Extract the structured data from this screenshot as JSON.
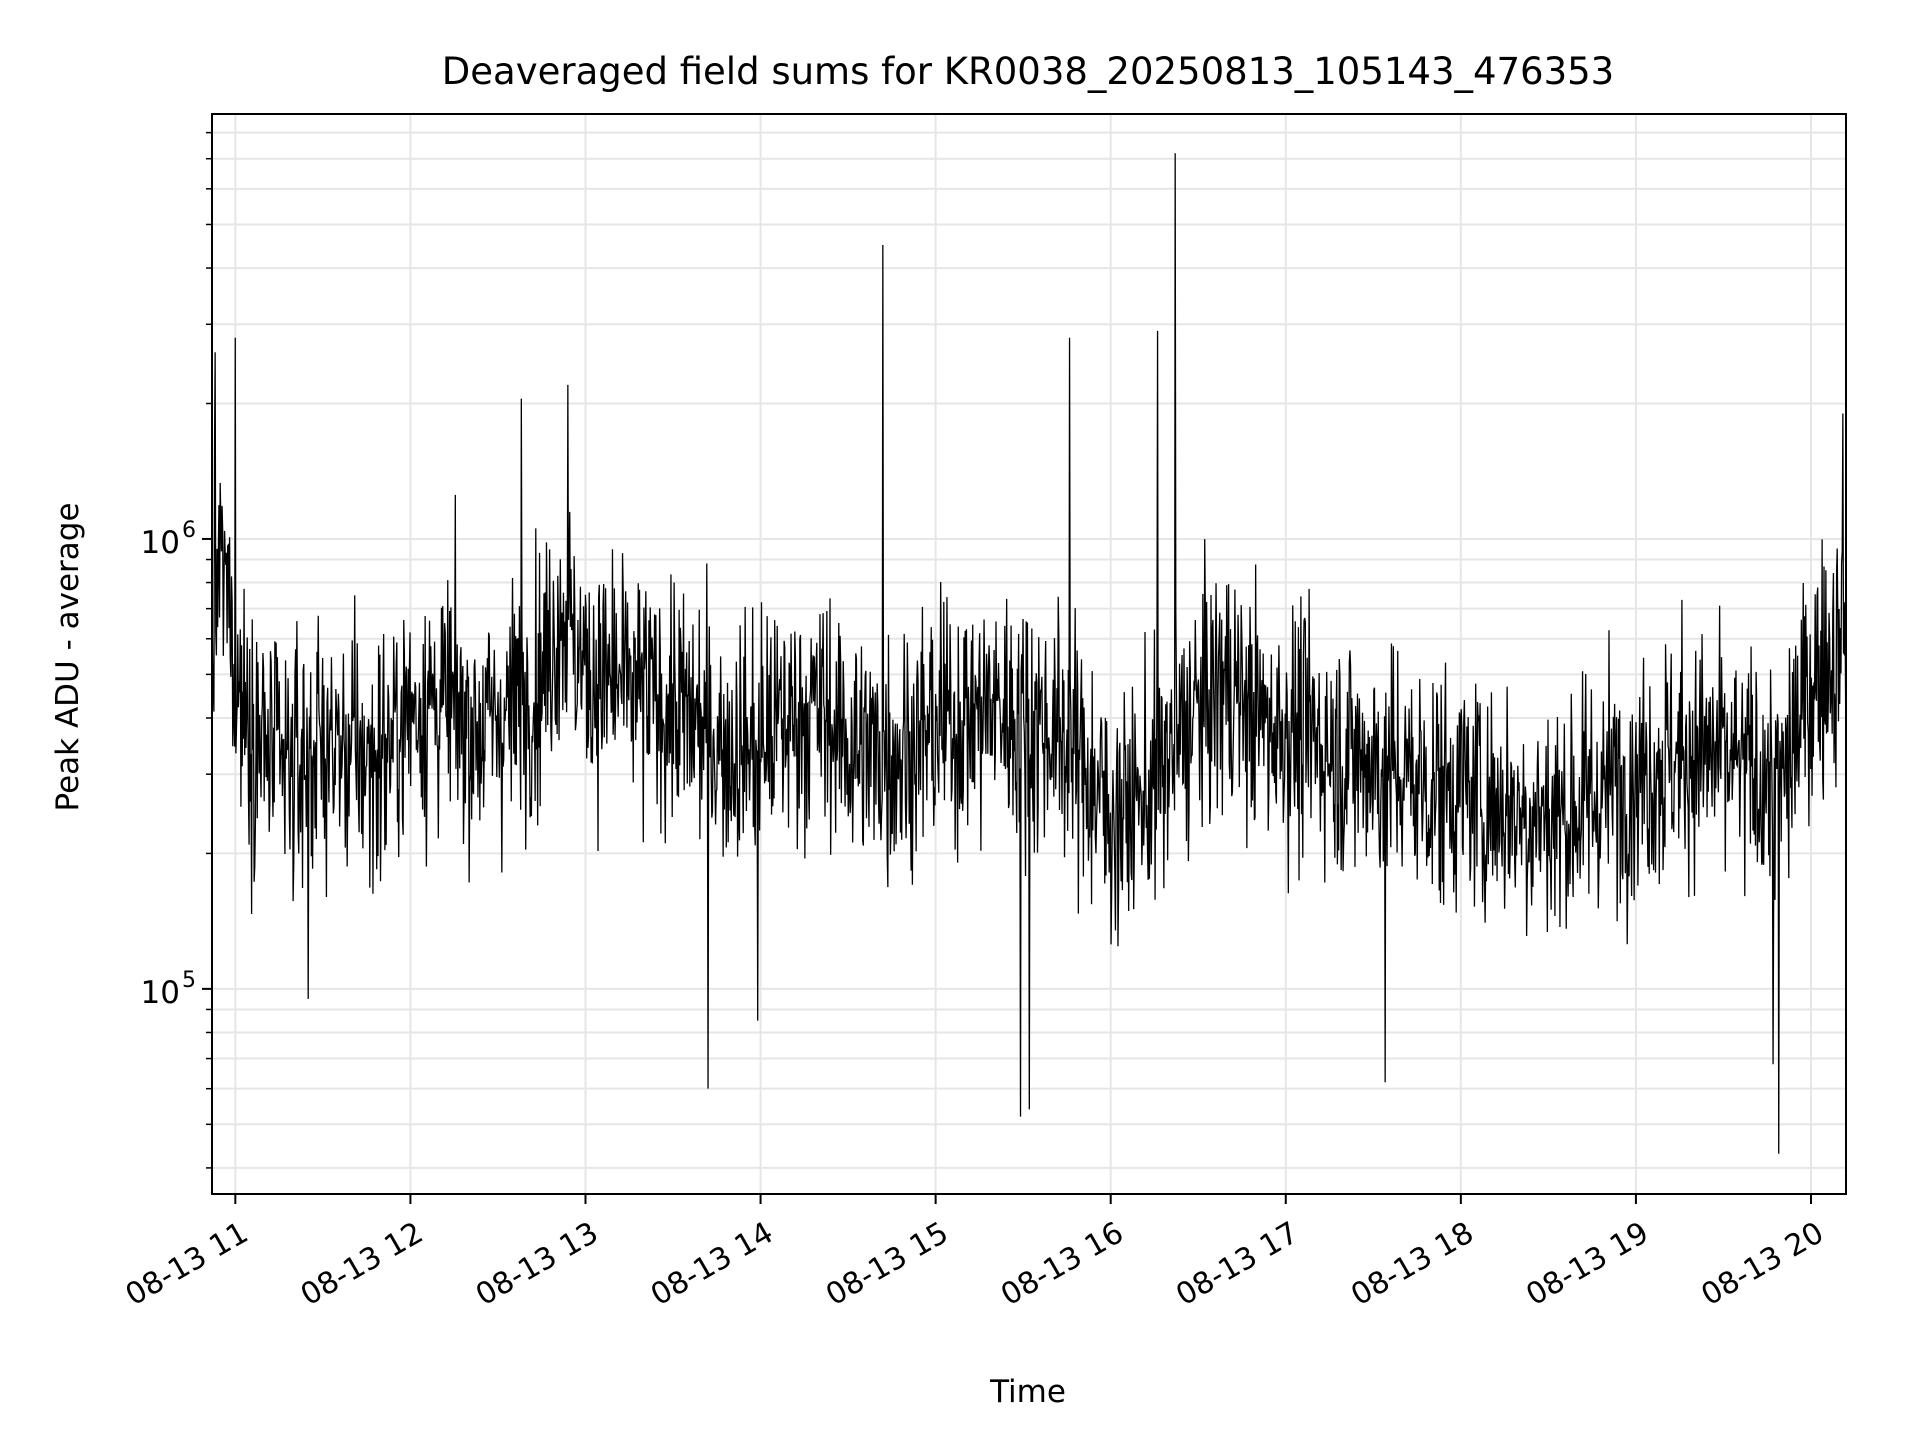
{
  "chart_data": {
    "type": "line",
    "title": "Deaveraged field sums for KR0038_20250813_105143_476353",
    "xlabel": "Time",
    "ylabel": "Peak ADU - average",
    "xscale": "time",
    "yscale": "log",
    "xlim": [
      "2025-08-13 10:52",
      "2025-08-13 20:12"
    ],
    "ylim": [
      35000,
      8800000
    ],
    "grid": true,
    "legend": "none",
    "line_color": "#000000",
    "grid_color": "#e6e6e6",
    "xticks": [
      {
        "x": "2025-08-13 11:00",
        "label": "08-13 11"
      },
      {
        "x": "2025-08-13 12:00",
        "label": "08-13 12"
      },
      {
        "x": "2025-08-13 13:00",
        "label": "08-13 13"
      },
      {
        "x": "2025-08-13 14:00",
        "label": "08-13 14"
      },
      {
        "x": "2025-08-13 15:00",
        "label": "08-13 15"
      },
      {
        "x": "2025-08-13 16:00",
        "label": "08-13 16"
      },
      {
        "x": "2025-08-13 17:00",
        "label": "08-13 17"
      },
      {
        "x": "2025-08-13 18:00",
        "label": "08-13 18"
      },
      {
        "x": "2025-08-13 19:00",
        "label": "08-13 19"
      },
      {
        "x": "2025-08-13 20:00",
        "label": "08-13 20"
      }
    ],
    "yticks": [
      {
        "y": 100000,
        "base": "10",
        "exp": "5"
      },
      {
        "y": 1000000,
        "base": "10",
        "exp": "6"
      }
    ],
    "series": [
      {
        "x": [
          "2025-08-13 10:52",
          "2025-08-13 10:55",
          "2025-08-13 10:57",
          "2025-08-13 11:00",
          "2025-08-13 11:06",
          "2025-08-13 11:12",
          "2025-08-13 11:18",
          "2025-08-13 11:24",
          "2025-08-13 11:30",
          "2025-08-13 11:36",
          "2025-08-13 11:42",
          "2025-08-13 11:48",
          "2025-08-13 11:54",
          "2025-08-13 12:00",
          "2025-08-13 12:08",
          "2025-08-13 12:15",
          "2025-08-13 12:22",
          "2025-08-13 12:30",
          "2025-08-13 12:38",
          "2025-08-13 12:45",
          "2025-08-13 12:52",
          "2025-08-13 13:00",
          "2025-08-13 13:10",
          "2025-08-13 13:20",
          "2025-08-13 13:30",
          "2025-08-13 13:40",
          "2025-08-13 13:50",
          "2025-08-13 14:00",
          "2025-08-13 14:10",
          "2025-08-13 14:20",
          "2025-08-13 14:30",
          "2025-08-13 14:40",
          "2025-08-13 14:50",
          "2025-08-13 15:00",
          "2025-08-13 15:10",
          "2025-08-13 15:20",
          "2025-08-13 15:30",
          "2025-08-13 15:40",
          "2025-08-13 15:50",
          "2025-08-13 16:00",
          "2025-08-13 16:10",
          "2025-08-13 16:20",
          "2025-08-13 16:30",
          "2025-08-13 16:40",
          "2025-08-13 16:50",
          "2025-08-13 17:00",
          "2025-08-13 17:10",
          "2025-08-13 17:20",
          "2025-08-13 17:30",
          "2025-08-13 17:40",
          "2025-08-13 17:50",
          "2025-08-13 18:00",
          "2025-08-13 18:10",
          "2025-08-13 18:20",
          "2025-08-13 18:30",
          "2025-08-13 18:40",
          "2025-08-13 18:50",
          "2025-08-13 19:00",
          "2025-08-13 19:10",
          "2025-08-13 19:20",
          "2025-08-13 19:30",
          "2025-08-13 19:40",
          "2025-08-13 19:50",
          "2025-08-13 20:00",
          "2025-08-13 20:06",
          "2025-08-13 20:12"
        ],
        "y": [
          550000,
          900000,
          780000,
          500000,
          380000,
          330000,
          300000,
          330000,
          350000,
          340000,
          330000,
          320000,
          360000,
          420000,
          440000,
          420000,
          380000,
          400000,
          440000,
          500000,
          700000,
          500000,
          480000,
          450000,
          420000,
          380000,
          340000,
          360000,
          400000,
          420000,
          350000,
          330000,
          340000,
          380000,
          400000,
          420000,
          400000,
          380000,
          320000,
          240000,
          260000,
          320000,
          420000,
          480000,
          400000,
          380000,
          360000,
          330000,
          320000,
          300000,
          280000,
          280000,
          260000,
          250000,
          240000,
          250000,
          280000,
          300000,
          320000,
          340000,
          320000,
          300000,
          280000,
          480000,
          550000,
          580000
        ]
      }
    ],
    "spikes": [
      {
        "x": "2025-08-13 14:42",
        "y": 4500000
      },
      {
        "x": "2025-08-13 16:22",
        "y": 7200000
      },
      {
        "x": "2025-08-13 16:16",
        "y": 2900000
      },
      {
        "x": "2025-08-13 15:46",
        "y": 2800000
      },
      {
        "x": "2025-08-13 11:00",
        "y": 2800000
      },
      {
        "x": "2025-08-13 10:53",
        "y": 2600000
      },
      {
        "x": "2025-08-13 12:54",
        "y": 2200000
      },
      {
        "x": "2025-08-13 12:38",
        "y": 2050000
      },
      {
        "x": "2025-08-13 20:11",
        "y": 1900000
      },
      {
        "x": "2025-08-13 13:42",
        "y": 60000
      },
      {
        "x": "2025-08-13 15:29",
        "y": 52000
      },
      {
        "x": "2025-08-13 15:32",
        "y": 54000
      },
      {
        "x": "2025-08-13 17:34",
        "y": 62000
      },
      {
        "x": "2025-08-13 19:49",
        "y": 43000
      },
      {
        "x": "2025-08-13 19:47",
        "y": 68000
      },
      {
        "x": "2025-08-13 13:59",
        "y": 85000
      },
      {
        "x": "2025-08-13 11:25",
        "y": 95000
      }
    ]
  }
}
